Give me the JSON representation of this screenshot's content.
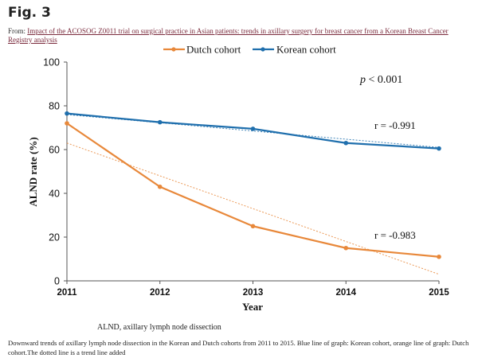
{
  "figure": {
    "label": "Fig. 3",
    "from_prefix": "From: ",
    "from_link": "Impact of the ACOSOG Z0011 trial on surgical practice in Asian patients: trends in axillary surgery for breast cancer from a Korean Breast Cancer Registry analysis",
    "abbreviation": "ALND, axillary lymph node dissection",
    "caption": "Downward trends of axillary lymph node dissection in the Korean and Dutch cohorts from 2011 to 2015. Blue line of graph: Korean cohort, orange line of graph: Dutch cohort.The dotted line is a trend line added"
  },
  "chart_data": {
    "type": "line",
    "title": "",
    "xlabel": "Year",
    "ylabel": "ALND rate (%)",
    "x": [
      2011,
      2012,
      2013,
      2014,
      2015
    ],
    "xlim": [
      2011,
      2015
    ],
    "ylim": [
      0,
      100
    ],
    "yticks": [
      0,
      20,
      40,
      60,
      80,
      100
    ],
    "grid": false,
    "legend_position": "top-center",
    "series": [
      {
        "name": "Dutch cohort",
        "color": "#e8883a",
        "values": [
          72,
          43,
          25,
          15,
          11
        ],
        "trend": [
          63,
          3
        ]
      },
      {
        "name": "Korean cohort",
        "color": "#1f6fad",
        "values": [
          76.5,
          72.5,
          69.5,
          63,
          60.5
        ],
        "trend": [
          76,
          61
        ]
      }
    ],
    "annotations": {
      "p_symbol": "p",
      "p_text": " < 0.001",
      "korean_r": "r = -0.991",
      "dutch_r": "r = -0.983"
    }
  }
}
